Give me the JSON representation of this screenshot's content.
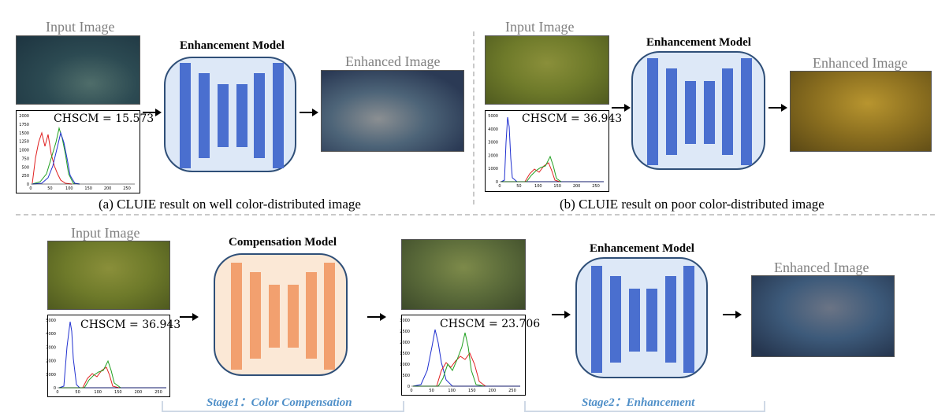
{
  "panel_a": {
    "input_label": "Input Image",
    "model_title": "Enhancement Model",
    "output_label": "Enhanced Image",
    "metric": "CHSCM = 15.573",
    "caption": "(a) CLUIE result on well color-distributed image",
    "hist_y_ticks": [
      "0",
      "250",
      "500",
      "750",
      "1000",
      "1250",
      "1500",
      "1750",
      "2000"
    ],
    "hist_x_ticks": [
      "0",
      "50",
      "100",
      "150",
      "200",
      "250"
    ]
  },
  "panel_b": {
    "input_label": "Input Image",
    "model_title": "Enhancement Model",
    "output_label": "Enhanced Image",
    "metric": "CHSCM = 36.943",
    "caption": "(b) CLUIE result on poor color-distributed image",
    "hist_y_ticks": [
      "0",
      "1000",
      "2000",
      "3000",
      "4000",
      "5000"
    ],
    "hist_x_ticks": [
      "0",
      "50",
      "100",
      "150",
      "200",
      "250"
    ]
  },
  "panel_c": {
    "input_label": "Input Image",
    "comp_model_title": "Compensation Model",
    "enh_model_title": "Enhancement Model",
    "output_label": "Enhanced Image",
    "metric_input": "CHSCM = 36.943",
    "metric_compensated": "CHSCM = 23.706",
    "stage1": "Stage1：Color Compensation",
    "stage2": "Stage2：Enhancement",
    "hist_in_y_ticks": [
      "0",
      "1000",
      "2000",
      "3000",
      "4000",
      "5000"
    ],
    "hist_mid_y_ticks": [
      "0",
      "500",
      "1000",
      "1500",
      "2000",
      "2500",
      "3000"
    ],
    "hist_x_ticks": [
      "0",
      "50",
      "100",
      "150",
      "200",
      "250"
    ]
  },
  "colors": {
    "enh_bar": "#4a6fcf",
    "comp_bar": "#f2a06f",
    "enh_box_bg": "#dde8f7",
    "comp_box_bg": "#fbe8d6",
    "stage_text": "#4f8fc8"
  }
}
